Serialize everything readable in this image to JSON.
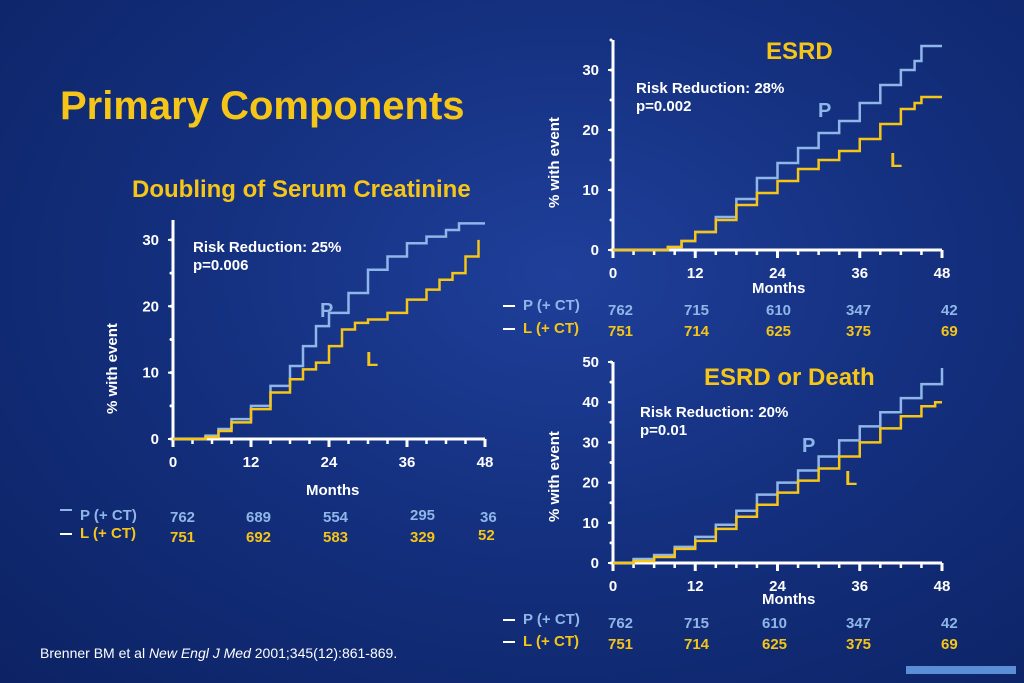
{
  "slide_title": "Primary Components",
  "citation": {
    "authors": "Brenner BM et al ",
    "journal": "New Engl J  Med",
    "rest": "  2001;345(12):861-869."
  },
  "colors": {
    "P": "#8fb6e8",
    "L": "#f5c518",
    "title": "#f5c518",
    "background": "#14307f"
  },
  "chart_data": [
    {
      "type": "line",
      "title": "Doubling of Serum Creatinine",
      "xlabel": "Months",
      "ylabel": "% with event",
      "xlim": [
        0,
        48
      ],
      "ylim": [
        0,
        33
      ],
      "xticks": [
        0,
        12,
        24,
        36,
        48
      ],
      "yticks": [
        0,
        10,
        20,
        30
      ],
      "annotation": [
        "Risk Reduction:  25%",
        "p=0.006"
      ],
      "series": [
        {
          "name": "P",
          "label": "P (+ CT)",
          "x": [
            0,
            3,
            5,
            7,
            9,
            12,
            15,
            18,
            20,
            22,
            24,
            27,
            30,
            33,
            36,
            39,
            42,
            44,
            48
          ],
          "y": [
            0,
            0,
            0.5,
            1.5,
            3,
            5,
            8,
            11,
            14,
            17,
            19,
            22,
            25.5,
            27.5,
            29.5,
            30.5,
            31.5,
            32.5,
            32.5
          ],
          "at_risk": [
            "762",
            "689",
            "554",
            "295",
            "36"
          ]
        },
        {
          "name": "L",
          "label": "L (+ CT)",
          "x": [
            0,
            3,
            5,
            7,
            9,
            12,
            15,
            18,
            20,
            22,
            24,
            26,
            28,
            30,
            33,
            36,
            39,
            41,
            43,
            45,
            47
          ],
          "y": [
            0,
            0,
            0.3,
            1.2,
            2.5,
            4.5,
            7,
            9,
            10.5,
            11.5,
            14,
            16.5,
            17.5,
            18,
            19,
            21,
            22.5,
            24,
            25,
            27.5,
            30
          ],
          "at_risk": [
            "751",
            "692",
            "583",
            "329",
            "52"
          ]
        }
      ]
    },
    {
      "type": "line",
      "title": "ESRD",
      "xlabel": "Months",
      "ylabel": "% with event",
      "xlim": [
        0,
        48
      ],
      "ylim": [
        0,
        35
      ],
      "xticks": [
        0,
        12,
        24,
        36,
        48
      ],
      "yticks": [
        0,
        10,
        20,
        30
      ],
      "annotation": [
        "Risk Reduction:  28%",
        "p=0.002"
      ],
      "series": [
        {
          "name": "P",
          "label": "P (+ CT)",
          "x": [
            0,
            6,
            8,
            10,
            12,
            15,
            18,
            21,
            24,
            27,
            30,
            33,
            36,
            39,
            42,
            44,
            45,
            48
          ],
          "y": [
            0,
            0,
            0.5,
            1.5,
            3,
            5.5,
            8.5,
            12,
            14.5,
            17,
            19.5,
            21.5,
            24.5,
            27.5,
            30,
            31.5,
            34,
            34
          ],
          "at_risk": [
            "762",
            "715",
            "610",
            "347",
            "42"
          ]
        },
        {
          "name": "L",
          "label": "L (+ CT)",
          "x": [
            0,
            6,
            8,
            10,
            12,
            15,
            18,
            21,
            24,
            27,
            30,
            33,
            36,
            39,
            42,
            44,
            45,
            48
          ],
          "y": [
            0,
            0,
            0.5,
            1.5,
            3,
            5,
            7.5,
            9.5,
            11.5,
            13.5,
            15,
            16.5,
            18.5,
            21,
            23.5,
            24.5,
            25.5,
            25.5
          ],
          "at_risk": [
            "751",
            "714",
            "625",
            "375",
            "69"
          ]
        }
      ]
    },
    {
      "type": "line",
      "title": "ESRD or Death",
      "xlabel": "Months",
      "ylabel": "% with event",
      "xlim": [
        0,
        48
      ],
      "ylim": [
        0,
        50
      ],
      "xticks": [
        0,
        12,
        24,
        36,
        48
      ],
      "yticks": [
        0,
        10,
        20,
        30,
        40,
        50
      ],
      "annotation": [
        "Risk Reduction:  20%",
        " p=0.01"
      ],
      "series": [
        {
          "name": "P",
          "label": "P (+ CT)",
          "x": [
            0,
            3,
            6,
            9,
            12,
            15,
            18,
            21,
            24,
            27,
            30,
            33,
            36,
            39,
            42,
            45,
            48
          ],
          "y": [
            0,
            1,
            2,
            4,
            6.5,
            9.5,
            13,
            17,
            20,
            23,
            26.5,
            30.5,
            34,
            37.5,
            41,
            44.5,
            48.5
          ],
          "at_risk": [
            "762",
            "715",
            "610",
            "347",
            "42"
          ]
        },
        {
          "name": "L",
          "label": "L (+ CT)",
          "x": [
            0,
            3,
            6,
            9,
            12,
            15,
            18,
            21,
            24,
            27,
            30,
            33,
            36,
            39,
            42,
            45,
            47,
            48
          ],
          "y": [
            0,
            0.5,
            1.5,
            3.5,
            5.5,
            8.5,
            11.5,
            14.5,
            17.5,
            20.5,
            23.5,
            26.5,
            30,
            33.5,
            36.5,
            39,
            40,
            40
          ],
          "at_risk": [
            "751",
            "714",
            "625",
            "375",
            "69"
          ]
        }
      ]
    }
  ]
}
